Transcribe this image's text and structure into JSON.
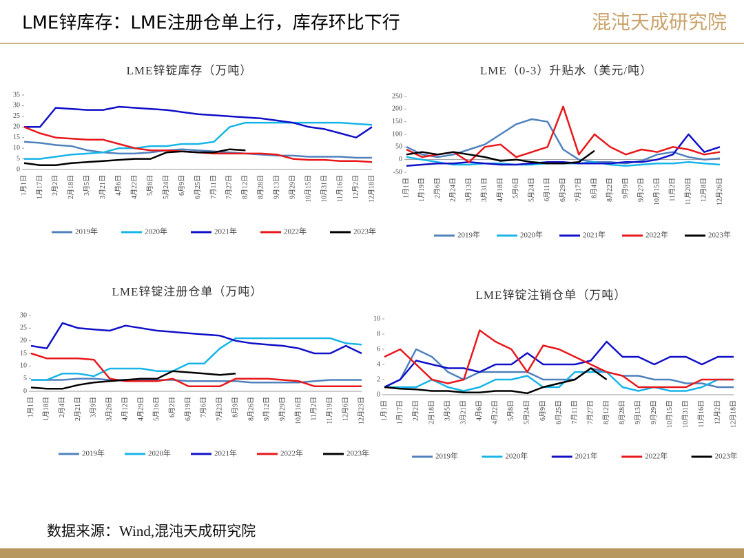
{
  "header": {
    "title": "LME锌库存：LME注册仓单上行，库存环比下行",
    "logo": "混沌天成研究院"
  },
  "footer": {
    "source": "数据来源：Wind,混沌天成研究院"
  },
  "chart_data": [
    {
      "type": "line",
      "title": "LME锌锭库存（万吨）",
      "ylim": [
        0,
        35
      ],
      "yticks": [
        0,
        5,
        10,
        15,
        20,
        25,
        30,
        35
      ],
      "categories": [
        "1月1日",
        "1月17日",
        "2月2日",
        "2月18日",
        "3月5日",
        "3月21日",
        "4月6日",
        "4月22日",
        "5月8日",
        "5月24日",
        "6月9日",
        "6月25日",
        "7月11日",
        "7月27日",
        "8月12日",
        "8月28日",
        "9月13日",
        "9月29日",
        "10月15日",
        "10月31日",
        "11月16日",
        "12月2日",
        "12月18日"
      ],
      "series": [
        {
          "name": "2019年",
          "color": "#4f81bd",
          "values": [
            13,
            12.5,
            11.5,
            11,
            9,
            8,
            7.5,
            7.5,
            8,
            9,
            9.5,
            9,
            8.5,
            8,
            7.5,
            7,
            6.5,
            6.5,
            6,
            6,
            6,
            5.5,
            5.5
          ]
        },
        {
          "name": "2020年",
          "color": "#17b4e8",
          "values": [
            5,
            5,
            6,
            7,
            7.5,
            8,
            10,
            10,
            11,
            11,
            12,
            12,
            13,
            20,
            22,
            22,
            22,
            22,
            22,
            22,
            22,
            21.5,
            21
          ]
        },
        {
          "name": "2021年",
          "color": "#1010c8",
          "values": [
            20,
            20,
            29,
            28.5,
            28,
            28,
            29.5,
            29,
            28.5,
            28,
            27,
            26,
            25.5,
            25,
            24.5,
            24,
            23,
            22,
            20,
            19,
            17,
            15,
            20
          ]
        },
        {
          "name": "2022年",
          "color": "#e8171a",
          "values": [
            20,
            17,
            15,
            14.5,
            14,
            14,
            12,
            10,
            9,
            9,
            8.5,
            8,
            7.5,
            7.5,
            7.5,
            7.5,
            7,
            5,
            4.5,
            4.5,
            4,
            4,
            3.5
          ]
        },
        {
          "name": "2023年",
          "color": "#000000",
          "values": [
            3,
            2,
            2,
            3,
            3.5,
            4,
            4.5,
            5,
            5,
            8,
            8.5,
            8,
            8,
            9.5,
            9,
            null,
            null,
            null,
            null,
            null,
            null,
            null,
            null
          ]
        }
      ]
    },
    {
      "type": "line",
      "title": "LME（0-3）升贴水（美元/吨）",
      "ylim": [
        -50,
        250
      ],
      "yticks": [
        -50,
        0,
        50,
        100,
        150,
        200,
        250
      ],
      "categories": [
        "1月1日",
        "1月19日",
        "2月6日",
        "2月24日",
        "3月13日",
        "3月31日",
        "4月18日",
        "5月6日",
        "5月24日",
        "6月11日",
        "6月29日",
        "7月17日",
        "8月4日",
        "8月22日",
        "9月9日",
        "9月27日",
        "10月15日",
        "11月2日",
        "11月20日",
        "12月8日",
        "12月26日"
      ],
      "series": [
        {
          "name": "2019年",
          "color": "#4f81bd",
          "values": [
            50,
            20,
            10,
            20,
            40,
            60,
            100,
            140,
            160,
            150,
            40,
            0,
            -10,
            -10,
            -15,
            -5,
            20,
            30,
            10,
            0,
            5
          ]
        },
        {
          "name": "2020年",
          "color": "#17b4e8",
          "values": [
            10,
            0,
            -10,
            -20,
            -20,
            -15,
            -15,
            -20,
            -20,
            -15,
            -15,
            -15,
            -10,
            -20,
            -25,
            -20,
            -15,
            -15,
            -10,
            -15,
            -20
          ]
        },
        {
          "name": "2021年",
          "color": "#1010c8",
          "values": [
            -25,
            -20,
            -15,
            -15,
            -10,
            -15,
            -20,
            -20,
            -15,
            -10,
            -10,
            -15,
            -15,
            -15,
            -10,
            -10,
            0,
            20,
            100,
            30,
            50
          ]
        },
        {
          "name": "2022年",
          "color": "#e8171a",
          "values": [
            40,
            10,
            20,
            30,
            -10,
            50,
            60,
            10,
            30,
            50,
            210,
            20,
            100,
            50,
            20,
            40,
            30,
            50,
            40,
            20,
            30
          ]
        },
        {
          "name": "2023年",
          "color": "#000000",
          "values": [
            20,
            30,
            20,
            30,
            20,
            10,
            -5,
            0,
            -10,
            -15,
            -15,
            -10,
            35,
            null,
            null,
            null,
            null,
            null,
            null,
            null,
            null
          ]
        }
      ]
    },
    {
      "type": "line",
      "title": "LME锌锭注册仓单（万吨）",
      "ylim": [
        0,
        30
      ],
      "yticks": [
        0,
        5,
        10,
        15,
        20,
        25,
        30
      ],
      "categories": [
        "1月1日",
        "1月18日",
        "2月4日",
        "2月21日",
        "3月9日",
        "3月26日",
        "4月12日",
        "4月29日",
        "5月16日",
        "6月2日",
        "6月19日",
        "7月6日",
        "7月23日",
        "8月9日",
        "8月26日",
        "9月12日",
        "9月29日",
        "10月16日",
        "11月2日",
        "11月19日",
        "12月6日",
        "12月23日"
      ],
      "series": [
        {
          "name": "2019年",
          "color": "#4f81bd",
          "values": [
            4.5,
            4.5,
            4.5,
            5,
            5,
            4.5,
            4.5,
            4.5,
            4.5,
            4.5,
            4,
            4,
            4,
            4,
            3.5,
            3.5,
            3.5,
            3.5,
            4,
            4.5,
            4.5,
            4.5
          ]
        },
        {
          "name": "2020年",
          "color": "#17b4e8",
          "values": [
            4.5,
            4.5,
            7,
            7,
            6,
            9,
            9,
            9,
            8,
            8,
            11,
            11,
            17,
            21,
            21,
            21,
            21,
            21,
            21,
            21,
            19,
            18.5
          ]
        },
        {
          "name": "2021年",
          "color": "#1010c8",
          "values": [
            18,
            17,
            27,
            25,
            24.5,
            24,
            26,
            25,
            24,
            23.5,
            23,
            22.5,
            22,
            20,
            19,
            18.5,
            18,
            17,
            15,
            15,
            18,
            15
          ]
        },
        {
          "name": "2022年",
          "color": "#e8171a",
          "values": [
            15,
            13,
            13,
            13,
            12.5,
            5,
            4,
            4,
            4,
            5,
            2,
            2,
            2,
            5,
            5,
            5,
            4.5,
            4,
            2,
            2,
            2,
            2
          ]
        },
        {
          "name": "2023年",
          "color": "#000000",
          "values": [
            1.5,
            1,
            1,
            2.5,
            3.5,
            4,
            4.5,
            5,
            5,
            8,
            7.5,
            7,
            6.5,
            7,
            null,
            null,
            null,
            null,
            null,
            null,
            null,
            null
          ]
        }
      ]
    },
    {
      "type": "line",
      "title": "LME锌锭注销仓单（万吨）",
      "ylim": [
        0,
        10
      ],
      "yticks": [
        0,
        2,
        4,
        6,
        8,
        10
      ],
      "categories": [
        "1月1日",
        "1月17日",
        "2月2日",
        "2月18日",
        "3月5日",
        "3月21日",
        "4月6日",
        "4月22日",
        "5月8日",
        "5月24日",
        "6月9日",
        "6月25日",
        "7月11日",
        "7月27日",
        "8月12日",
        "8月28日",
        "9月13日",
        "9月29日",
        "10月15日",
        "10月31日",
        "11月16日",
        "12月2日",
        "12月18日"
      ],
      "series": [
        {
          "name": "2019年",
          "color": "#4f81bd",
          "values": [
            1,
            2,
            6,
            5,
            3,
            2,
            3,
            3,
            3,
            3,
            2,
            2,
            2,
            3.5,
            3,
            2.5,
            2.5,
            2,
            2,
            1.5,
            1.5,
            1,
            1
          ]
        },
        {
          "name": "2020年",
          "color": "#17b4e8",
          "values": [
            1,
            1,
            1,
            2,
            1,
            0.5,
            1,
            2,
            2,
            2.5,
            1,
            1,
            3,
            3,
            3,
            1,
            0.5,
            1,
            0.5,
            0.5,
            1,
            2,
            2
          ]
        },
        {
          "name": "2021年",
          "color": "#1010c8",
          "values": [
            1,
            2,
            4.5,
            4,
            3.5,
            3.5,
            3,
            4,
            4,
            5.5,
            4,
            4,
            4,
            4.5,
            7,
            5,
            5,
            4,
            5,
            5,
            4,
            5,
            5
          ]
        },
        {
          "name": "2022年",
          "color": "#e8171a",
          "values": [
            5,
            6,
            4,
            2,
            1.5,
            2,
            8.5,
            7,
            6,
            3,
            6.5,
            6,
            5,
            4,
            3,
            2.5,
            1,
            1,
            1,
            1,
            2,
            2,
            2
          ]
        },
        {
          "name": "2023年",
          "color": "#000000",
          "values": [
            1,
            0.8,
            0.7,
            0.5,
            0.5,
            0.3,
            0.3,
            0.5,
            0.5,
            0.2,
            1,
            1.5,
            2,
            3.5,
            2,
            null,
            null,
            null,
            null,
            null,
            null,
            null,
            null
          ]
        }
      ]
    }
  ]
}
